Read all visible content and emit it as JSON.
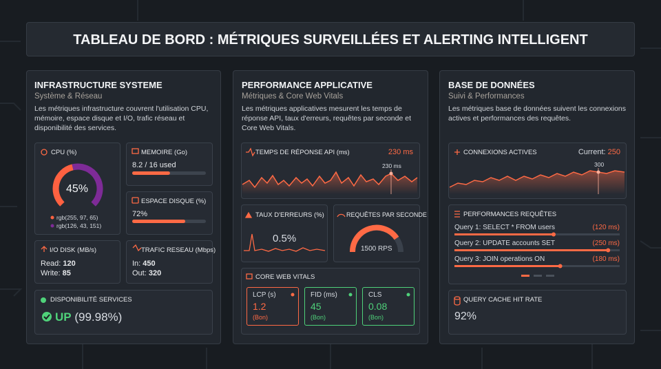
{
  "header": {
    "title": "TABLEAU DE BORD : MÉTRIQUES SURVEILLÉES ET ALERTING INTELLIGENT"
  },
  "panels": [
    {
      "title": "INFRASTRUCTURE SYSTEME",
      "subtitle": "Système & Réseau",
      "description": "Les métriques infrastructure couvrent l'utilisation CPU, mémoire, espace disque et I/O, trafic réseau et disponibilité des services.",
      "cpu": {
        "label": "CPU (%)",
        "value": 45,
        "value_label": "45%",
        "legend": [
          "rgb(255, 97, 65)",
          "rgb(126, 43, 151)"
        ]
      },
      "memory": {
        "label": "MEMOIRE (Go)",
        "used": 8.2,
        "total": 16,
        "value_label": "8.2 / 16 used"
      },
      "disk": {
        "label": "ESPACE DISQUE (%)",
        "value": 72,
        "value_label": "72%"
      },
      "io": {
        "label": "I/O DISK (MB/s)",
        "lines": [
          {
            "name": "Read:",
            "value": "120"
          },
          {
            "name": "Write:",
            "value": "85"
          }
        ]
      },
      "traffic": {
        "label": "TRAFIC RESEAU (Mbps)",
        "lines": [
          {
            "name": "In:",
            "value": "450"
          },
          {
            "name": "Out:",
            "value": "320"
          }
        ]
      },
      "availability": {
        "label": "DISPONIBILITÉ SERVICES",
        "status": "UP",
        "value_label": "(99.98%)"
      }
    },
    {
      "title": "PERFORMANCE APPLICATIVE",
      "subtitle": "Métriques & Core Web Vitals",
      "description": "Les métriques applicatives mesurent les temps de réponse API, taux d'erreurs, requêtes par seconde et Core Web Vitals.",
      "api": {
        "label": "TEMPS DE RÉPONSE API (ms)",
        "current": "230 ms",
        "peak": "230 ms"
      },
      "errors": {
        "label": "TAUX D'ERREURS (%)",
        "value": "0.5%"
      },
      "rps": {
        "label": "REQUÊTES PAR SECONDE",
        "value": "1500 RPS"
      },
      "cwv": {
        "label": "CORE WEB VITALS",
        "items": [
          {
            "name": "LCP (s)",
            "value": "1.2",
            "status": "(Bon)"
          },
          {
            "name": "FID (ms)",
            "value": "45",
            "status": "(Bon)"
          },
          {
            "name": "CLS",
            "value": "0.08",
            "status": "(Bon)"
          }
        ]
      }
    },
    {
      "title": "BASE DE DONNÉES",
      "subtitle": "Suivi & Performances",
      "description": "Les métriques base de données suivent les connexions actives et performances des requêtes.",
      "connections": {
        "label": "CONNEXIONS ACTIVES",
        "current_label": "Current:",
        "current": "250",
        "peak": "300"
      },
      "queries": {
        "label": "PERFORMANCES REQUÊTES",
        "items": [
          {
            "name": "Query 1: SELECT * FROM users",
            "time": "(120 ms)"
          },
          {
            "name": "Query 2: UPDATE accounts SET",
            "time": "(250 ms)"
          },
          {
            "name": "Query 3: JOIN operations ON",
            "time": "(180 ms)"
          }
        ]
      },
      "cache": {
        "label": "QUERY CACHE HIT RATE",
        "value": "92%"
      }
    }
  ]
}
